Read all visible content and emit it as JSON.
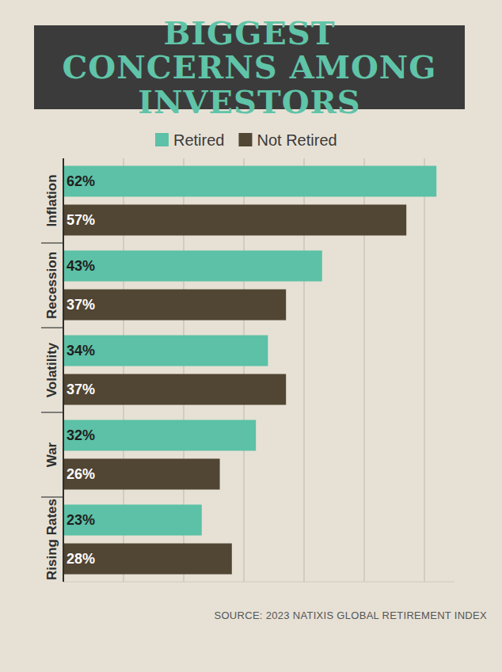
{
  "chart_data": {
    "type": "bar",
    "title": "BIGGEST CONCERNS AMONG INVESTORS",
    "orientation": "horizontal",
    "categories": [
      "Inflation",
      "Recession",
      "Volatility",
      "War",
      "Rising Rates"
    ],
    "series": [
      {
        "name": "Retired",
        "color": "#5cc1a6",
        "values": [
          62,
          43,
          34,
          32,
          23
        ],
        "value_labels": [
          "62%",
          "43%",
          "34%",
          "32%",
          "23%"
        ]
      },
      {
        "name": "Not Retired",
        "color": "#514533",
        "values": [
          57,
          37,
          37,
          26,
          28
        ],
        "value_labels": [
          "57%",
          "37%",
          "37%",
          "26%",
          "28%"
        ]
      }
    ],
    "xlim": [
      0,
      65
    ],
    "xticks": [
      0,
      10,
      20,
      30,
      40,
      50,
      60
    ],
    "grid": true,
    "tick_labels": false,
    "data_labels": true,
    "legend": "top",
    "source": "SOURCE: 2023 NATIXIS GLOBAL RETIREMENT INDEX"
  }
}
